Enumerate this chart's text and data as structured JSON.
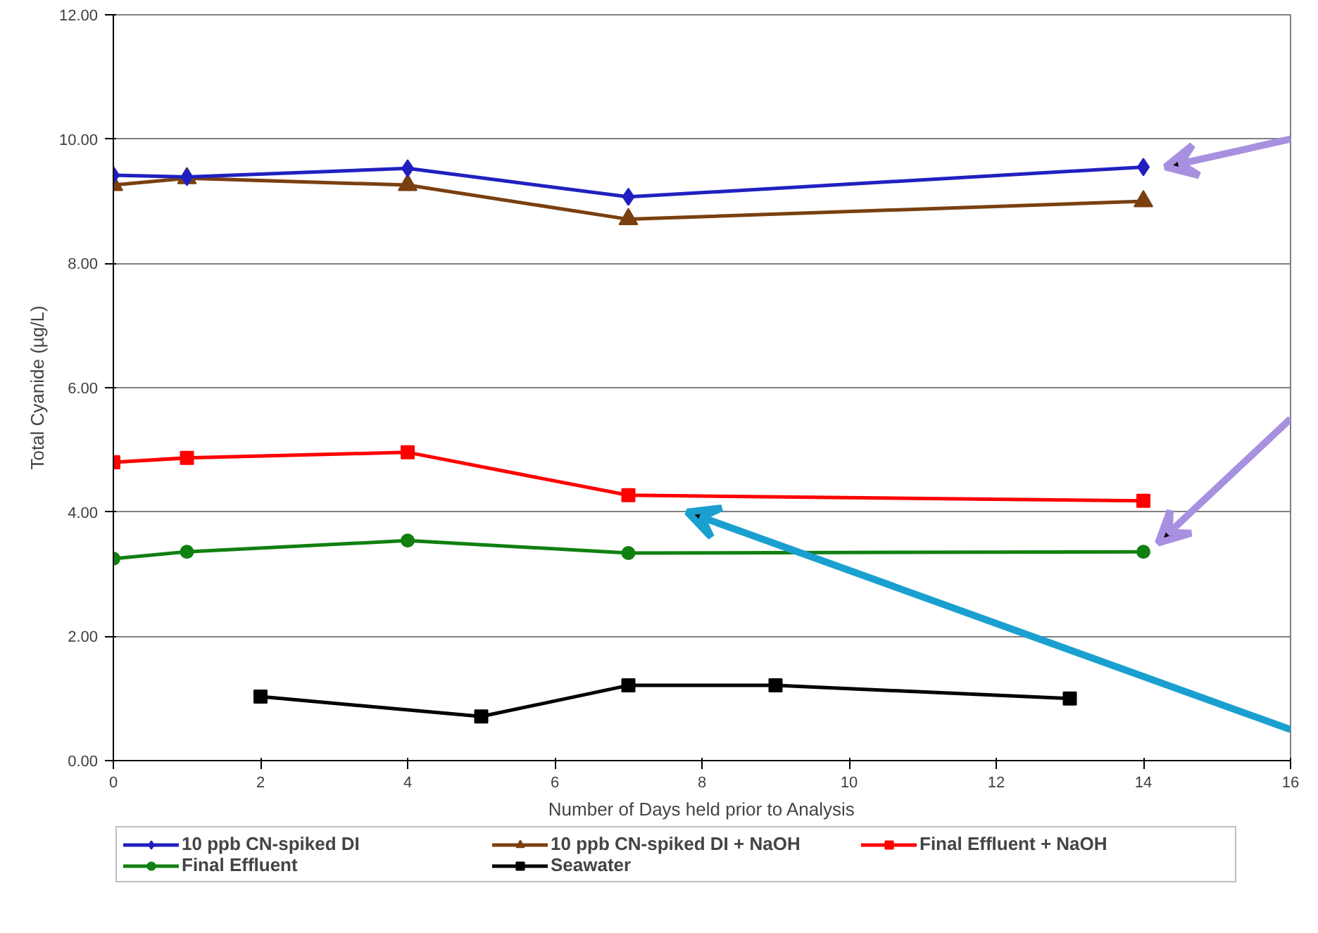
{
  "chart_data": {
    "type": "line",
    "xlabel": "Number of Days held prior to Analysis",
    "ylabel": "Total Cyanide (µg/L)",
    "xlim": [
      0,
      16
    ],
    "xticks": [
      0,
      2,
      4,
      6,
      8,
      10,
      12,
      14,
      16
    ],
    "ylim": [
      0,
      12
    ],
    "yticks": [
      {
        "value": 0,
        "label": "0.00"
      },
      {
        "value": 2,
        "label": "2.00"
      },
      {
        "value": 4,
        "label": "4.00"
      },
      {
        "value": 6,
        "label": "6.00"
      },
      {
        "value": 8,
        "label": "8.00"
      },
      {
        "value": 10,
        "label": "10.00"
      },
      {
        "value": 12,
        "label": "12.00"
      }
    ],
    "grid": "y",
    "legend": "bottom",
    "line_style": "solid",
    "series": [
      {
        "name": "10 ppb CN-spiked DI",
        "color": "#2020c0",
        "marker": "diamond",
        "x": [
          0,
          1,
          4,
          7,
          14
        ],
        "values": [
          9.42,
          9.39,
          9.53,
          9.07,
          9.55
        ]
      },
      {
        "name": "10 ppb CN-spiked DI + NaOH",
        "color": "#7a4010",
        "marker": "triangle",
        "x": [
          0,
          1,
          4,
          7,
          14
        ],
        "values": [
          9.26,
          9.37,
          9.26,
          8.71,
          9.0
        ]
      },
      {
        "name": "Final Effluent + NaOH",
        "color": "#ff0000",
        "marker": "square",
        "x": [
          0,
          1,
          4,
          7,
          14
        ],
        "values": [
          4.8,
          4.87,
          4.96,
          4.27,
          4.18
        ]
      },
      {
        "name": "Final Effluent",
        "color": "#108010",
        "marker": "circle",
        "x": [
          0,
          1,
          4,
          7,
          14
        ],
        "values": [
          3.25,
          3.36,
          3.54,
          3.34,
          3.36
        ]
      },
      {
        "name": "Seawater",
        "color": "#000000",
        "marker": "square",
        "x": [
          2,
          5,
          7,
          9,
          13
        ],
        "values": [
          1.03,
          0.71,
          1.21,
          1.21,
          1.0
        ]
      }
    ]
  }
}
